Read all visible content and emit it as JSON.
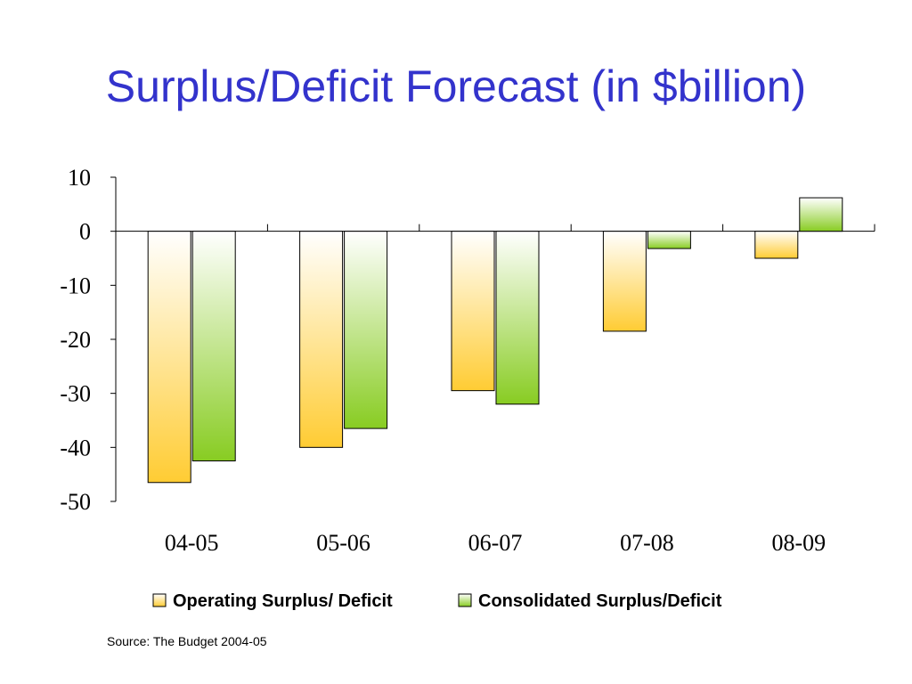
{
  "title": "Surplus/Deficit Forecast (in $billion)",
  "source": "Source: The Budget 2004-05",
  "chart_data": {
    "type": "bar",
    "categories": [
      "04-05",
      "05-06",
      "06-07",
      "07-08",
      "08-09"
    ],
    "series": [
      {
        "name": "Operating Surplus/ Deficit",
        "values": [
          -46.5,
          -40,
          -29.5,
          -18.5,
          -5
        ],
        "color": "#ffcc33"
      },
      {
        "name": "Consolidated Surplus/Deficit",
        "values": [
          -42.5,
          -36.5,
          -32,
          -3.2,
          6.2
        ],
        "color": "#88cc22"
      }
    ],
    "yticks": [
      "10",
      "0",
      "-10",
      "-20",
      "-30",
      "-40",
      "-50"
    ],
    "ylim": [
      -50,
      10
    ],
    "legend_position": "bottom",
    "grid": false
  }
}
